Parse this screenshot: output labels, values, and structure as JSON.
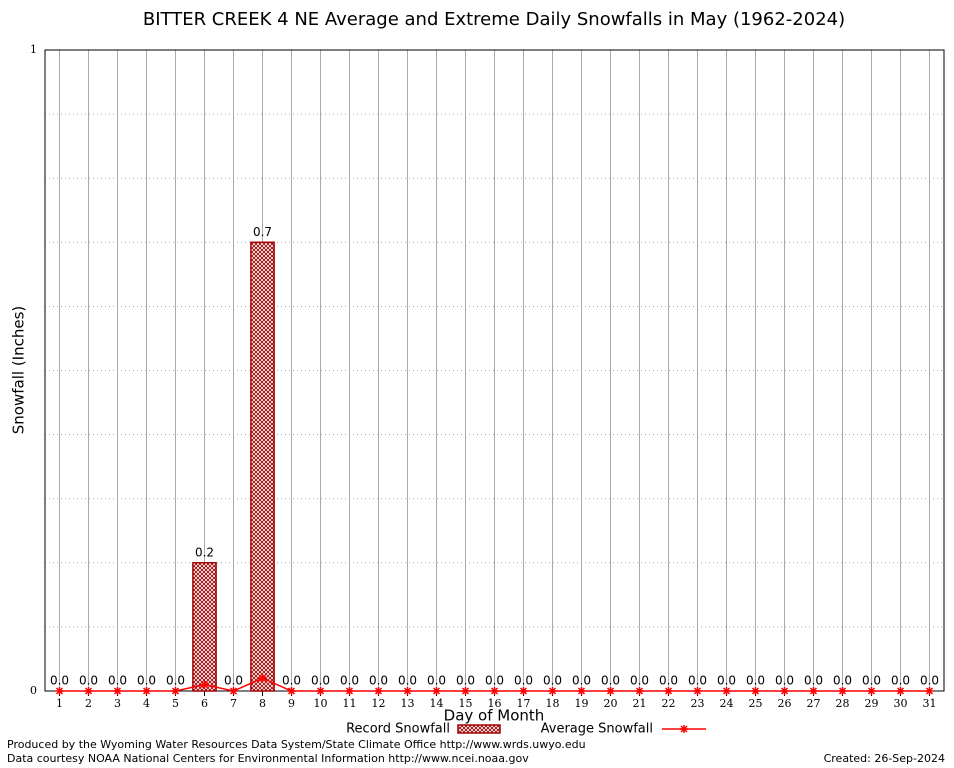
{
  "chart_data": {
    "type": "bar",
    "title": "BITTER CREEK 4 NE Average and Extreme Daily Snowfalls in May (1962-2024)",
    "y_label": "Snowfall (Inches)",
    "x_label": "Day of Month",
    "categories": [
      "1",
      "2",
      "3",
      "4",
      "5",
      "6",
      "7",
      "8",
      "9",
      "10",
      "11",
      "12",
      "13",
      "14",
      "15",
      "16",
      "17",
      "18",
      "19",
      "20",
      "21",
      "22",
      "23",
      "24",
      "25",
      "26",
      "27",
      "28",
      "29",
      "30",
      "31"
    ],
    "series": [
      {
        "name": "Record Snowfall",
        "type": "bar",
        "color": "#a00000",
        "values": [
          0,
          0,
          0,
          0,
          0,
          0.2,
          0,
          0.7,
          0,
          0,
          0,
          0,
          0,
          0,
          0,
          0,
          0,
          0,
          0,
          0,
          0,
          0,
          0,
          0,
          0,
          0,
          0,
          0,
          0,
          0,
          0
        ],
        "value_labels": [
          "0.0",
          "0.0",
          "0.0",
          "0.0",
          "0.0",
          "0.2",
          "0.0",
          "0.7",
          "0.0",
          "0.0",
          "0.0",
          "0.0",
          "0.0",
          "0.0",
          "0.0",
          "0.0",
          "0.0",
          "0.0",
          "0.0",
          "0.0",
          "0.0",
          "0.0",
          "0.0",
          "0.0",
          "0.0",
          "0.0",
          "0.0",
          "0.0",
          "0.0",
          "0.0",
          "0.0"
        ]
      },
      {
        "name": "Average Snowfall",
        "type": "line",
        "color": "#ff0000",
        "values": [
          0,
          0,
          0,
          0,
          0,
          0.01,
          0,
          0.02,
          0,
          0,
          0,
          0,
          0,
          0,
          0,
          0,
          0,
          0,
          0,
          0,
          0,
          0,
          0,
          0,
          0,
          0,
          0,
          0,
          0,
          0,
          0
        ]
      }
    ],
    "ylim": [
      0,
      1
    ],
    "yticks": [
      0,
      1
    ],
    "y_minor_ticks": [
      0.1,
      0.2,
      0.3,
      0.4,
      0.5,
      0.6,
      0.7,
      0.8,
      0.9
    ],
    "grid": true
  },
  "footer": {
    "lines": [
      "Produced by the Wyoming Water Resources Data System/State Climate Office http://www.wrds.uwyo.edu",
      "Data courtesy NOAA National Centers for Environmental Information http://www.ncei.noaa.gov"
    ],
    "created": "Created:  26-Sep-2024"
  }
}
